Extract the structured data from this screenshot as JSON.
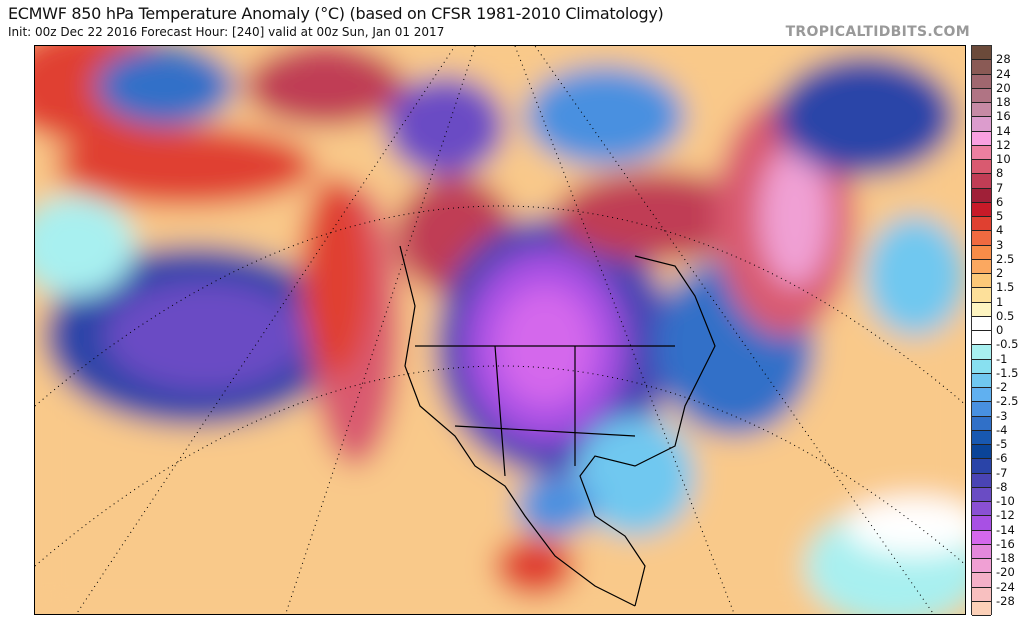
{
  "header": {
    "title": "ECMWF 850 hPa Temperature Anomaly (°C) (based on CFSR 1981-2010 Climatology)",
    "subtitle": "Init: 00z Dec 22 2016   Forecast Hour: [240]   valid at 00z Sun, Jan 01 2017",
    "brand": "TROPICALTIDBITS.COM"
  },
  "colorbar": {
    "labels": [
      "28",
      "24",
      "20",
      "18",
      "16",
      "14",
      "12",
      "10",
      "8",
      "7",
      "6",
      "5",
      "4",
      "3",
      "2.5",
      "2",
      "1.5",
      "1",
      "0.5",
      "0",
      "-0.5",
      "-1",
      "-1.5",
      "-2",
      "-2.5",
      "-3",
      "-4",
      "-5",
      "-6",
      "-7",
      "-8",
      "-10",
      "-12",
      "-14",
      "-16",
      "-18",
      "-20",
      "-24",
      "-28"
    ],
    "colors": [
      "#6b4a3a",
      "#8a5a55",
      "#a0676f",
      "#b07484",
      "#c68aa5",
      "#dc9ccd",
      "#f9a0e0",
      "#ec7fa0",
      "#d95a70",
      "#c03d55",
      "#a02038",
      "#c81a28",
      "#e04030",
      "#f06a40",
      "#f88c48",
      "#fba860",
      "#fcc878",
      "#fde09a",
      "#fef4c0",
      "#ffffff",
      "#ffffff",
      "#a8f0f0",
      "#88e0f0",
      "#70c8f0",
      "#60b0f0",
      "#4890e0",
      "#3070c8",
      "#1858b0",
      "#0a4498",
      "#2a44a8",
      "#4a44b4",
      "#6a4cc4",
      "#8a50d4",
      "#a850e4",
      "#d468ec",
      "#e488dc",
      "#f0a0d4",
      "#f4b0c8",
      "#f8c0c0",
      "#fcd0b8"
    ]
  },
  "map": {
    "region": "North America / North Pacific / North Atlantic"
  }
}
